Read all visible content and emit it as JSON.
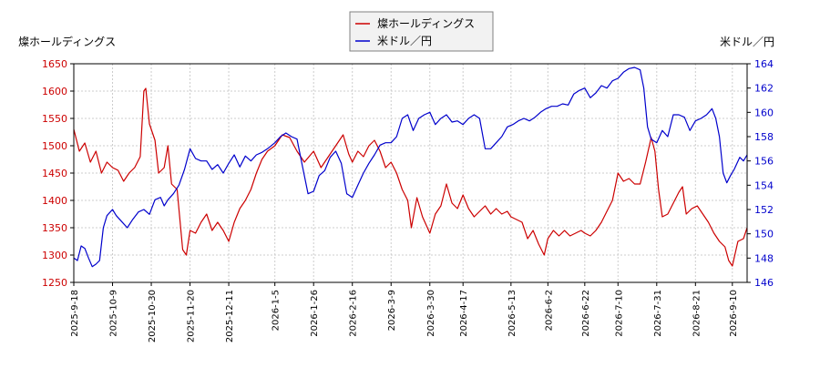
{
  "chart_data": {
    "type": "line",
    "legend": {
      "placement": "top-center",
      "items": [
        {
          "label": "燦ホールディングス",
          "color": "#cc0000"
        },
        {
          "label": "米ドル／円",
          "color": "#0000cc"
        }
      ]
    },
    "left_axis": {
      "label": "燦ホールディングス",
      "range": [
        1250,
        1650
      ],
      "ticks": [
        1250,
        1300,
        1350,
        1400,
        1450,
        1500,
        1550,
        1600,
        1650
      ],
      "color": "#cc0000"
    },
    "right_axis": {
      "label": "米ドル／円",
      "range": [
        146,
        164
      ],
      "ticks": [
        146,
        148,
        150,
        152,
        154,
        156,
        158,
        160,
        162,
        164
      ],
      "color": "#0000cc"
    },
    "x_axis": {
      "range": [
        "2025-09-18",
        "2026-09-18"
      ],
      "ticks": [
        "2025-9-18",
        "2025-10-9",
        "2025-10-30",
        "2025-11-20",
        "2025-12-11",
        "2026-1-5",
        "2026-1-26",
        "2026-2-16",
        "2026-3-9",
        "2026-3-30",
        "2026-4-17",
        "2026-5-13",
        "2026-6-2",
        "2026-6-22",
        "2026-7-10",
        "2026-7-31",
        "2026-8-21",
        "2026-9-10"
      ],
      "tick_dates": [
        "2025-09-18",
        "2025-10-09",
        "2025-10-30",
        "2025-11-20",
        "2025-12-11",
        "2026-01-05",
        "2026-01-26",
        "2026-02-16",
        "2026-03-09",
        "2026-03-30",
        "2026-04-17",
        "2026-05-13",
        "2026-06-02",
        "2026-06-22",
        "2026-07-10",
        "2026-07-31",
        "2026-08-21",
        "2026-09-10"
      ]
    },
    "grid": true,
    "series": [
      {
        "name": "燦ホールディングス",
        "axis": "left",
        "color": "#cc0000",
        "points": [
          [
            "2025-09-18",
            1530
          ],
          [
            "2025-09-21",
            1490
          ],
          [
            "2025-09-24",
            1505
          ],
          [
            "2025-09-27",
            1470
          ],
          [
            "2025-09-30",
            1490
          ],
          [
            "2025-10-03",
            1450
          ],
          [
            "2025-10-06",
            1470
          ],
          [
            "2025-10-09",
            1460
          ],
          [
            "2025-10-12",
            1455
          ],
          [
            "2025-10-15",
            1435
          ],
          [
            "2025-10-18",
            1450
          ],
          [
            "2025-10-21",
            1460
          ],
          [
            "2025-10-24",
            1480
          ],
          [
            "2025-10-26",
            1600
          ],
          [
            "2025-10-27",
            1605
          ],
          [
            "2025-10-29",
            1540
          ],
          [
            "2025-11-01",
            1510
          ],
          [
            "2025-11-03",
            1450
          ],
          [
            "2025-11-06",
            1460
          ],
          [
            "2025-11-08",
            1500
          ],
          [
            "2025-11-10",
            1430
          ],
          [
            "2025-11-13",
            1420
          ],
          [
            "2025-11-16",
            1310
          ],
          [
            "2025-11-18",
            1300
          ],
          [
            "2025-11-20",
            1345
          ],
          [
            "2025-11-23",
            1340
          ],
          [
            "2025-11-26",
            1360
          ],
          [
            "2025-11-29",
            1375
          ],
          [
            "2025-12-02",
            1345
          ],
          [
            "2025-12-05",
            1360
          ],
          [
            "2025-12-08",
            1345
          ],
          [
            "2025-12-11",
            1325
          ],
          [
            "2025-12-14",
            1360
          ],
          [
            "2025-12-17",
            1385
          ],
          [
            "2025-12-20",
            1400
          ],
          [
            "2025-12-23",
            1420
          ],
          [
            "2025-12-26",
            1450
          ],
          [
            "2025-12-29",
            1475
          ],
          [
            "2026-01-01",
            1490
          ],
          [
            "2026-01-05",
            1500
          ],
          [
            "2026-01-09",
            1520
          ],
          [
            "2026-01-13",
            1515
          ],
          [
            "2026-01-17",
            1490
          ],
          [
            "2026-01-21",
            1470
          ],
          [
            "2026-01-26",
            1490
          ],
          [
            "2026-01-30",
            1460
          ],
          [
            "2026-02-03",
            1480
          ],
          [
            "2026-02-07",
            1500
          ],
          [
            "2026-02-11",
            1520
          ],
          [
            "2026-02-14",
            1485
          ],
          [
            "2026-02-16",
            1470
          ],
          [
            "2026-02-19",
            1490
          ],
          [
            "2026-02-22",
            1480
          ],
          [
            "2026-02-25",
            1500
          ],
          [
            "2026-02-28",
            1510
          ],
          [
            "2026-03-03",
            1490
          ],
          [
            "2026-03-06",
            1460
          ],
          [
            "2026-03-09",
            1470
          ],
          [
            "2026-03-12",
            1450
          ],
          [
            "2026-03-15",
            1420
          ],
          [
            "2026-03-18",
            1400
          ],
          [
            "2026-03-20",
            1350
          ],
          [
            "2026-03-23",
            1405
          ],
          [
            "2026-03-26",
            1370
          ],
          [
            "2026-03-30",
            1340
          ],
          [
            "2026-04-02",
            1375
          ],
          [
            "2026-04-05",
            1390
          ],
          [
            "2026-04-08",
            1430
          ],
          [
            "2026-04-11",
            1395
          ],
          [
            "2026-04-14",
            1385
          ],
          [
            "2026-04-17",
            1410
          ],
          [
            "2026-04-20",
            1385
          ],
          [
            "2026-04-23",
            1370
          ],
          [
            "2026-04-26",
            1380
          ],
          [
            "2026-04-29",
            1390
          ],
          [
            "2026-05-02",
            1375
          ],
          [
            "2026-05-05",
            1385
          ],
          [
            "2026-05-08",
            1375
          ],
          [
            "2026-05-11",
            1380
          ],
          [
            "2026-05-13",
            1370
          ],
          [
            "2026-05-16",
            1365
          ],
          [
            "2026-05-19",
            1360
          ],
          [
            "2026-05-22",
            1330
          ],
          [
            "2026-05-25",
            1345
          ],
          [
            "2026-05-28",
            1320
          ],
          [
            "2026-05-31",
            1300
          ],
          [
            "2026-06-02",
            1330
          ],
          [
            "2026-06-05",
            1345
          ],
          [
            "2026-06-08",
            1335
          ],
          [
            "2026-06-11",
            1345
          ],
          [
            "2026-06-14",
            1335
          ],
          [
            "2026-06-17",
            1340
          ],
          [
            "2026-06-20",
            1345
          ],
          [
            "2026-06-22",
            1340
          ],
          [
            "2026-06-25",
            1335
          ],
          [
            "2026-06-28",
            1345
          ],
          [
            "2026-07-01",
            1360
          ],
          [
            "2026-07-04",
            1380
          ],
          [
            "2026-07-07",
            1400
          ],
          [
            "2026-07-10",
            1450
          ],
          [
            "2026-07-13",
            1435
          ],
          [
            "2026-07-16",
            1440
          ],
          [
            "2026-07-19",
            1430
          ],
          [
            "2026-07-22",
            1430
          ],
          [
            "2026-07-25",
            1470
          ],
          [
            "2026-07-28",
            1515
          ],
          [
            "2026-07-30",
            1490
          ],
          [
            "2026-08-01",
            1420
          ],
          [
            "2026-08-03",
            1370
          ],
          [
            "2026-08-06",
            1375
          ],
          [
            "2026-08-09",
            1395
          ],
          [
            "2026-08-12",
            1415
          ],
          [
            "2026-08-14",
            1425
          ],
          [
            "2026-08-16",
            1375
          ],
          [
            "2026-08-19",
            1385
          ],
          [
            "2026-08-22",
            1390
          ],
          [
            "2026-08-25",
            1375
          ],
          [
            "2026-08-28",
            1360
          ],
          [
            "2026-08-31",
            1340
          ],
          [
            "2026-09-03",
            1325
          ],
          [
            "2026-09-06",
            1315
          ],
          [
            "2026-09-08",
            1290
          ],
          [
            "2026-09-10",
            1280
          ],
          [
            "2026-09-13",
            1325
          ],
          [
            "2026-09-16",
            1330
          ],
          [
            "2026-09-18",
            1350
          ]
        ]
      },
      {
        "name": "米ドル／円",
        "axis": "right",
        "color": "#0000cc",
        "points": [
          [
            "2025-09-18",
            148.0
          ],
          [
            "2025-09-20",
            147.8
          ],
          [
            "2025-09-22",
            149.0
          ],
          [
            "2025-09-24",
            148.8
          ],
          [
            "2025-09-26",
            148.0
          ],
          [
            "2025-09-28",
            147.3
          ],
          [
            "2025-09-30",
            147.5
          ],
          [
            "2025-10-02",
            147.8
          ],
          [
            "2025-10-04",
            150.5
          ],
          [
            "2025-10-06",
            151.5
          ],
          [
            "2025-10-09",
            152.0
          ],
          [
            "2025-10-11",
            151.5
          ],
          [
            "2025-10-14",
            151.0
          ],
          [
            "2025-10-17",
            150.5
          ],
          [
            "2025-10-20",
            151.2
          ],
          [
            "2025-10-23",
            151.8
          ],
          [
            "2025-10-26",
            152.0
          ],
          [
            "2025-10-29",
            151.6
          ],
          [
            "2025-11-01",
            152.8
          ],
          [
            "2025-11-04",
            153.0
          ],
          [
            "2025-11-06",
            152.3
          ],
          [
            "2025-11-08",
            152.8
          ],
          [
            "2025-11-11",
            153.3
          ],
          [
            "2025-11-14",
            154.0
          ],
          [
            "2025-11-17",
            155.3
          ],
          [
            "2025-11-20",
            157.0
          ],
          [
            "2025-11-23",
            156.2
          ],
          [
            "2025-11-26",
            156.0
          ],
          [
            "2025-11-29",
            156.0
          ],
          [
            "2025-12-02",
            155.3
          ],
          [
            "2025-12-05",
            155.7
          ],
          [
            "2025-12-08",
            155.0
          ],
          [
            "2025-12-11",
            155.8
          ],
          [
            "2025-12-14",
            156.5
          ],
          [
            "2025-12-17",
            155.5
          ],
          [
            "2025-12-20",
            156.4
          ],
          [
            "2025-12-23",
            156.0
          ],
          [
            "2025-12-26",
            156.5
          ],
          [
            "2025-12-29",
            156.7
          ],
          [
            "2026-01-01",
            157.0
          ],
          [
            "2026-01-05",
            157.5
          ],
          [
            "2026-01-08",
            158.0
          ],
          [
            "2026-01-11",
            158.3
          ],
          [
            "2026-01-14",
            158.0
          ],
          [
            "2026-01-17",
            157.8
          ],
          [
            "2026-01-20",
            155.5
          ],
          [
            "2026-01-23",
            153.3
          ],
          [
            "2026-01-26",
            153.5
          ],
          [
            "2026-01-29",
            154.8
          ],
          [
            "2026-02-01",
            155.2
          ],
          [
            "2026-02-04",
            156.3
          ],
          [
            "2026-02-07",
            156.8
          ],
          [
            "2026-02-10",
            155.8
          ],
          [
            "2026-02-13",
            153.3
          ],
          [
            "2026-02-16",
            153.0
          ],
          [
            "2026-02-19",
            154.0
          ],
          [
            "2026-02-22",
            155.0
          ],
          [
            "2026-02-25",
            155.8
          ],
          [
            "2026-02-28",
            156.5
          ],
          [
            "2026-03-03",
            157.3
          ],
          [
            "2026-03-06",
            157.5
          ],
          [
            "2026-03-09",
            157.5
          ],
          [
            "2026-03-12",
            158.0
          ],
          [
            "2026-03-15",
            159.5
          ],
          [
            "2026-03-18",
            159.8
          ],
          [
            "2026-03-21",
            158.5
          ],
          [
            "2026-03-24",
            159.5
          ],
          [
            "2026-03-27",
            159.8
          ],
          [
            "2026-03-30",
            160.0
          ],
          [
            "2026-04-02",
            159.0
          ],
          [
            "2026-04-05",
            159.5
          ],
          [
            "2026-04-08",
            159.8
          ],
          [
            "2026-04-11",
            159.2
          ],
          [
            "2026-04-14",
            159.3
          ],
          [
            "2026-04-17",
            159.0
          ],
          [
            "2026-04-20",
            159.5
          ],
          [
            "2026-04-23",
            159.8
          ],
          [
            "2026-04-26",
            159.5
          ],
          [
            "2026-04-29",
            157.0
          ],
          [
            "2026-05-02",
            157.0
          ],
          [
            "2026-05-05",
            157.5
          ],
          [
            "2026-05-08",
            158.0
          ],
          [
            "2026-05-11",
            158.8
          ],
          [
            "2026-05-14",
            159.0
          ],
          [
            "2026-05-17",
            159.3
          ],
          [
            "2026-05-20",
            159.5
          ],
          [
            "2026-05-23",
            159.3
          ],
          [
            "2026-05-26",
            159.6
          ],
          [
            "2026-05-29",
            160.0
          ],
          [
            "2026-06-01",
            160.3
          ],
          [
            "2026-06-04",
            160.5
          ],
          [
            "2026-06-07",
            160.5
          ],
          [
            "2026-06-10",
            160.7
          ],
          [
            "2026-06-13",
            160.6
          ],
          [
            "2026-06-16",
            161.5
          ],
          [
            "2026-06-19",
            161.8
          ],
          [
            "2026-06-22",
            162.0
          ],
          [
            "2026-06-25",
            161.2
          ],
          [
            "2026-06-28",
            161.6
          ],
          [
            "2026-07-01",
            162.2
          ],
          [
            "2026-07-04",
            162.0
          ],
          [
            "2026-07-07",
            162.6
          ],
          [
            "2026-07-10",
            162.8
          ],
          [
            "2026-07-13",
            163.3
          ],
          [
            "2026-07-16",
            163.6
          ],
          [
            "2026-07-19",
            163.7
          ],
          [
            "2026-07-22",
            163.5
          ],
          [
            "2026-07-24",
            162.0
          ],
          [
            "2026-07-26",
            158.8
          ],
          [
            "2026-07-28",
            157.8
          ],
          [
            "2026-07-31",
            157.5
          ],
          [
            "2026-08-03",
            158.5
          ],
          [
            "2026-08-06",
            158.0
          ],
          [
            "2026-08-09",
            159.8
          ],
          [
            "2026-08-12",
            159.8
          ],
          [
            "2026-08-15",
            159.6
          ],
          [
            "2026-08-18",
            158.5
          ],
          [
            "2026-08-21",
            159.3
          ],
          [
            "2026-08-24",
            159.5
          ],
          [
            "2026-08-27",
            159.8
          ],
          [
            "2026-08-30",
            160.3
          ],
          [
            "2026-09-01",
            159.5
          ],
          [
            "2026-09-03",
            158.0
          ],
          [
            "2026-09-05",
            155.0
          ],
          [
            "2026-09-07",
            154.2
          ],
          [
            "2026-09-09",
            154.8
          ],
          [
            "2026-09-11",
            155.3
          ],
          [
            "2026-09-14",
            156.3
          ],
          [
            "2026-09-16",
            156.0
          ],
          [
            "2026-09-18",
            156.5
          ]
        ]
      }
    ]
  }
}
